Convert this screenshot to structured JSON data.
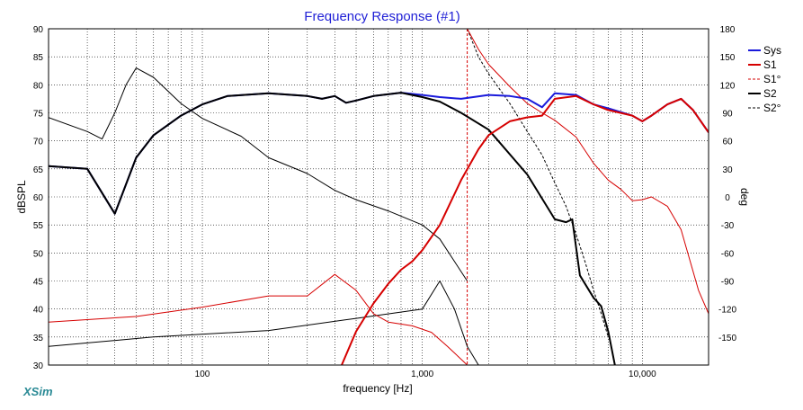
{
  "chart_data": {
    "type": "line",
    "title": "Frequency Response (#1)",
    "xlabel": "frequency [Hz]",
    "ylabel": "dBSPL",
    "y2label": "deg",
    "xscale": "log",
    "xlim": [
      20,
      20000
    ],
    "ylim": [
      30,
      90
    ],
    "y2lim": [
      -180,
      180
    ],
    "x_ticks": [
      100,
      1000,
      10000
    ],
    "x_tick_labels": [
      "100",
      "1,000",
      "10,000"
    ],
    "y_ticks": [
      30,
      35,
      40,
      45,
      50,
      55,
      60,
      65,
      70,
      75,
      80,
      85,
      90
    ],
    "y2_ticks": [
      -150,
      -120,
      -90,
      -60,
      -30,
      0,
      30,
      60,
      90,
      120,
      150,
      180
    ],
    "grid": true,
    "legend_position": "top-right",
    "series": [
      {
        "name": "Sys",
        "axis": "left",
        "color": "#1a1adb",
        "style": "solid",
        "width": 2,
        "points": [
          [
            20,
            65.5
          ],
          [
            30,
            65
          ],
          [
            40,
            57
          ],
          [
            50,
            67
          ],
          [
            60,
            71
          ],
          [
            80,
            74.5
          ],
          [
            100,
            76.5
          ],
          [
            130,
            78
          ],
          [
            200,
            78.5
          ],
          [
            300,
            78
          ],
          [
            350,
            77.5
          ],
          [
            400,
            78
          ],
          [
            450,
            76.8
          ],
          [
            500,
            77.2
          ],
          [
            600,
            78
          ],
          [
            800,
            78.6
          ],
          [
            1000,
            78.2
          ],
          [
            1200,
            77.8
          ],
          [
            1500,
            77.5
          ],
          [
            2000,
            78.2
          ],
          [
            2500,
            78
          ],
          [
            3000,
            77.5
          ],
          [
            3500,
            76
          ],
          [
            4000,
            78.5
          ],
          [
            5000,
            78.2
          ],
          [
            6000,
            76.5
          ],
          [
            7000,
            75.8
          ],
          [
            9000,
            74.5
          ],
          [
            10000,
            73.5
          ],
          [
            11000,
            74.5
          ],
          [
            13000,
            76.5
          ],
          [
            15000,
            77.5
          ],
          [
            17000,
            75.5
          ],
          [
            20000,
            71.5
          ]
        ]
      },
      {
        "name": "S1",
        "axis": "left",
        "color": "#d60000",
        "style": "solid",
        "width": 2,
        "points": [
          [
            430,
            30
          ],
          [
            500,
            36
          ],
          [
            600,
            41
          ],
          [
            700,
            44.5
          ],
          [
            800,
            47
          ],
          [
            900,
            48.5
          ],
          [
            1000,
            50.5
          ],
          [
            1200,
            55
          ],
          [
            1500,
            63
          ],
          [
            1800,
            68.5
          ],
          [
            2000,
            71
          ],
          [
            2500,
            73.5
          ],
          [
            3000,
            74.2
          ],
          [
            3500,
            74.5
          ],
          [
            4000,
            77.5
          ],
          [
            5000,
            78
          ],
          [
            6000,
            76.5
          ],
          [
            7000,
            75.5
          ],
          [
            9000,
            74.5
          ],
          [
            10000,
            73.5
          ],
          [
            11000,
            74.5
          ],
          [
            13000,
            76.5
          ],
          [
            15000,
            77.5
          ],
          [
            17000,
            75.5
          ],
          [
            20000,
            71.5
          ]
        ]
      },
      {
        "name": "S1 phase",
        "legend_label": "S1°",
        "axis": "right",
        "color": "#d60000",
        "style": "solid",
        "width": 1,
        "points": [
          [
            20,
            -134
          ],
          [
            50,
            -128
          ],
          [
            100,
            -118
          ],
          [
            200,
            -106
          ],
          [
            300,
            -106
          ],
          [
            400,
            -83
          ],
          [
            500,
            -100
          ],
          [
            600,
            -125
          ],
          [
            700,
            -134
          ],
          [
            900,
            -138
          ],
          [
            1100,
            -145
          ],
          [
            1300,
            -160
          ],
          [
            1600,
            -180
          ]
        ],
        "segments": [
          [
            [
              1600,
              180
            ],
            [
              1800,
              158
            ],
            [
              2000,
              142
            ],
            [
              2500,
              118
            ],
            [
              3000,
              100
            ],
            [
              3500,
              90
            ],
            [
              4000,
              82
            ],
            [
              5000,
              64
            ],
            [
              6000,
              36
            ],
            [
              7000,
              18
            ],
            [
              8000,
              8
            ],
            [
              9000,
              -4
            ],
            [
              10000,
              -3
            ],
            [
              11000,
              0
            ],
            [
              13000,
              -10
            ],
            [
              15000,
              -35
            ],
            [
              18000,
              -100
            ],
            [
              20000,
              -125
            ]
          ]
        ]
      },
      {
        "name": "S2",
        "axis": "left",
        "color": "#000000",
        "style": "solid",
        "width": 2,
        "points": [
          [
            20,
            65.5
          ],
          [
            30,
            65
          ],
          [
            40,
            57
          ],
          [
            50,
            67
          ],
          [
            60,
            71
          ],
          [
            80,
            74.5
          ],
          [
            100,
            76.5
          ],
          [
            130,
            78
          ],
          [
            200,
            78.5
          ],
          [
            300,
            78
          ],
          [
            350,
            77.5
          ],
          [
            400,
            78
          ],
          [
            450,
            76.8
          ],
          [
            500,
            77.2
          ],
          [
            600,
            78
          ],
          [
            800,
            78.6
          ],
          [
            1000,
            77.8
          ],
          [
            1200,
            77
          ],
          [
            1500,
            75
          ],
          [
            2000,
            72
          ],
          [
            3000,
            64
          ],
          [
            4000,
            56
          ],
          [
            4500,
            55.5
          ],
          [
            4800,
            56
          ],
          [
            5200,
            46
          ],
          [
            6000,
            42
          ],
          [
            6500,
            40.5
          ],
          [
            7000,
            36
          ],
          [
            7500,
            30
          ]
        ]
      },
      {
        "name": "S2 phase",
        "legend_label": "S2°",
        "axis": "right",
        "color": "#000000",
        "style": "solid",
        "width": 1,
        "segments": [
          [
            [
              20,
              85
            ],
            [
              30,
              70
            ],
            [
              35,
              62
            ],
            [
              40,
              90
            ],
            [
              45,
              120
            ],
            [
              50,
              138
            ],
            [
              60,
              128
            ],
            [
              80,
              100
            ],
            [
              100,
              84
            ],
            [
              150,
              65
            ],
            [
              200,
              42
            ],
            [
              300,
              25
            ],
            [
              400,
              7
            ],
            [
              500,
              -3
            ],
            [
              700,
              -15
            ],
            [
              1000,
              -30
            ],
            [
              1200,
              -45
            ],
            [
              1600,
              -90
            ]
          ],
          [
            [
              20,
              -160
            ],
            [
              60,
              -150
            ],
            [
              200,
              -143
            ],
            [
              500,
              -130
            ],
            [
              1000,
              -120
            ],
            [
              1200,
              -90
            ],
            [
              1400,
              -120
            ],
            [
              1600,
              -160
            ],
            [
              1800,
              -180
            ]
          ]
        ]
      }
    ],
    "dashed_series": [
      {
        "name": "S1° wrapped",
        "color": "#d60000",
        "points": [
          [
            1600,
            180
          ],
          [
            1600,
            -180
          ]
        ]
      },
      {
        "name": "S2° wrapped",
        "color": "#000000",
        "points": [
          [
            1600,
            180
          ],
          [
            1800,
            150
          ],
          [
            2000,
            132
          ],
          [
            2500,
            100
          ],
          [
            3000,
            70
          ],
          [
            3500,
            45
          ],
          [
            4000,
            15
          ],
          [
            4500,
            -10
          ],
          [
            5000,
            -40
          ],
          [
            5500,
            -70
          ],
          [
            6000,
            -100
          ],
          [
            6500,
            -125
          ],
          [
            7000,
            -150
          ]
        ]
      }
    ],
    "legend": [
      {
        "label": "Sys",
        "color": "#1a1adb",
        "dash": "solid"
      },
      {
        "label": "S1",
        "color": "#d60000",
        "dash": "solid"
      },
      {
        "label": "S1°",
        "color": "#d60000",
        "dash": "dashed"
      },
      {
        "label": "S2",
        "color": "#000000",
        "dash": "solid"
      },
      {
        "label": "S2°",
        "color": "#000000",
        "dash": "dashed"
      }
    ]
  },
  "brand": "XSim"
}
